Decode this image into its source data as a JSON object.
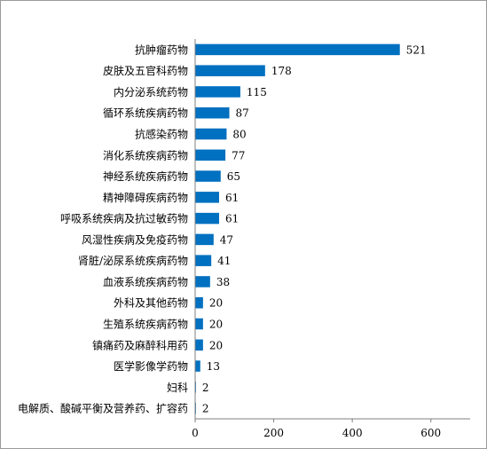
{
  "chart_data": {
    "type": "bar",
    "orientation": "horizontal",
    "title": "",
    "xlabel": "",
    "ylabel": "",
    "categories": [
      "抗肿瘤药物",
      "皮肤及五官科药物",
      "内分泌系统药物",
      "循环系统疾病药物",
      "抗感染药物",
      "消化系统疾病药物",
      "神经系统疾病药物",
      "精神障碍疾病药物",
      "呼吸系统疾病及抗过敏药物",
      "风湿性疾病及免疫药物",
      "肾脏/泌尿系统疾病药物",
      "血液系统疾病药物",
      "外科及其他药物",
      "生殖系统疾病药物",
      "镇痛药及麻醉科用药",
      "医学影像学药物",
      "妇科",
      "电解质、酸碱平衡及营养药、扩容药"
    ],
    "values": [
      521,
      178,
      115,
      87,
      80,
      77,
      65,
      61,
      61,
      47,
      41,
      38,
      20,
      20,
      20,
      13,
      2,
      2
    ],
    "xlim": [
      0,
      700
    ],
    "xticks": [
      0,
      200,
      400,
      600
    ],
    "grid": false,
    "legend": "none",
    "bar_color": "#0070C0"
  }
}
